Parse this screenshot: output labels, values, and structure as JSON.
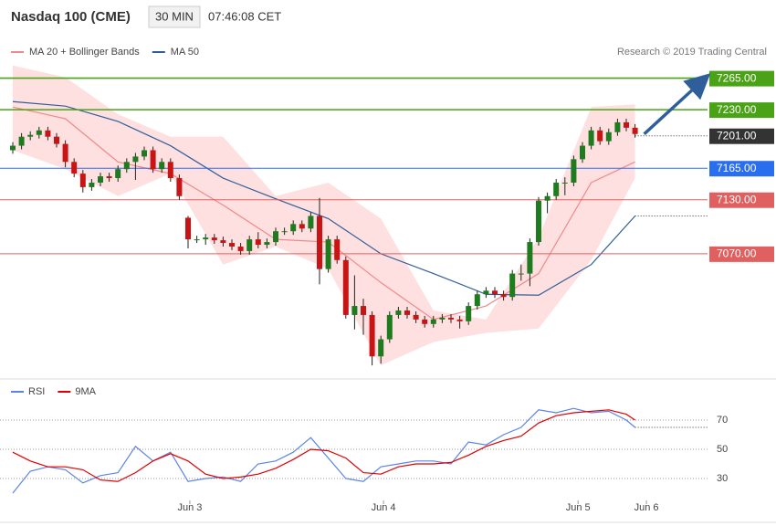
{
  "header": {
    "title": "Nasdaq 100 (CME)",
    "interval": "30 MIN",
    "time": "07:46:08 CET"
  },
  "chart_data": [
    {
      "type": "candlestick",
      "annotation": "Research © 2019 Trading Central",
      "up_color": "#1e7b1e",
      "down_color": "#c81414",
      "open": [
        7185,
        7190,
        7200,
        7202,
        7207,
        7200,
        7192,
        7172,
        7159,
        7144,
        7149,
        7156,
        7154,
        7164,
        7172,
        7178,
        7185,
        7164,
        7172,
        7154,
        7110,
        7086,
        7086,
        7088,
        7085,
        7082,
        7078,
        7073,
        7086,
        7080,
        7083,
        7095,
        7095,
        7103,
        7098,
        7112,
        7053,
        7086,
        7063,
        7002,
        7012,
        7002,
        6956,
        6975,
        7002,
        7007,
        7002,
        6997,
        6992,
        6997,
        6999,
        6997,
        6995,
        7012,
        7025,
        7029,
        7025,
        7022,
        7048,
        7048,
        7083,
        7129,
        7134,
        7149,
        7149,
        7175,
        7190,
        7207,
        7195,
        7205,
        7216,
        7210
      ],
      "high": [
        7194,
        7204,
        7206,
        7211,
        7211,
        7204,
        7196,
        7176,
        7163,
        7153,
        7160,
        7160,
        7168,
        7176,
        7182,
        7189,
        7189,
        7176,
        7176,
        7158,
        7112,
        7090,
        7092,
        7092,
        7089,
        7086,
        7082,
        7090,
        7094,
        7087,
        7099,
        7099,
        7107,
        7107,
        7116,
        7132,
        7090,
        7090,
        7067,
        7046,
        7020,
        7006,
        6979,
        7006,
        7011,
        7011,
        7006,
        7001,
        7001,
        7003,
        7003,
        7001,
        7016,
        7029,
        7033,
        7033,
        7029,
        7052,
        7058,
        7087,
        7133,
        7138,
        7153,
        7155,
        7179,
        7194,
        7211,
        7211,
        7209,
        7220,
        7220,
        7214
      ],
      "low": [
        7181,
        7186,
        7196,
        7198,
        7196,
        7188,
        7166,
        7155,
        7138,
        7140,
        7145,
        7150,
        7150,
        7160,
        7152,
        7174,
        7160,
        7160,
        7150,
        7130,
        7076,
        7082,
        7080,
        7081,
        7078,
        7074,
        7069,
        7069,
        7076,
        7076,
        7079,
        7091,
        7091,
        7094,
        7094,
        7036,
        7049,
        7059,
        6998,
        6986,
        6980,
        6946,
        6948,
        6971,
        6998,
        6998,
        6993,
        6988,
        6988,
        6993,
        6993,
        6987,
        6991,
        7008,
        7021,
        7021,
        7018,
        7018,
        7040,
        7034,
        7079,
        7115,
        7130,
        7135,
        7145,
        7171,
        7186,
        7191,
        7191,
        7201,
        7206,
        7199
      ],
      "close": [
        7190,
        7200,
        7202,
        7207,
        7200,
        7192,
        7172,
        7159,
        7144,
        7149,
        7156,
        7154,
        7164,
        7172,
        7178,
        7185,
        7164,
        7172,
        7154,
        7134,
        7086,
        7086,
        7088,
        7085,
        7082,
        7078,
        7073,
        7086,
        7080,
        7083,
        7095,
        7095,
        7103,
        7098,
        7112,
        7053,
        7086,
        7063,
        7002,
        7012,
        7002,
        6956,
        6975,
        7002,
        7007,
        7002,
        6997,
        6992,
        6997,
        6999,
        6997,
        6995,
        7012,
        7025,
        7029,
        7025,
        7022,
        7048,
        7048,
        7083,
        7129,
        7134,
        7149,
        7149,
        7175,
        7190,
        7207,
        7195,
        7205,
        7216,
        7210,
        7203
      ],
      "ylim": [
        6936,
        7293
      ],
      "xlim": [
        0,
        73
      ],
      "xticks": [
        {
          "value": 20.2,
          "label": "Jun 3"
        },
        {
          "value": 42.3,
          "label": "Jun 4"
        },
        {
          "value": 64.5,
          "label": "Jun 5"
        },
        {
          "value": 72.3,
          "label": "Jun 6"
        }
      ],
      "overlays": [
        {
          "name": "MA 20 + Bollinger Bands",
          "color": "#ef8a8a",
          "band_color": "#ffe0e0",
          "x": [
            0,
            6,
            12,
            18,
            24,
            30,
            36,
            42,
            48,
            54,
            60,
            66,
            71
          ],
          "values": [
            7233,
            7220,
            7172,
            7159,
            7124,
            7086,
            7083,
            7038,
            6997,
            7012,
            7048,
            7149,
            7172
          ],
          "upper": [
            7279,
            7266,
            7225,
            7200,
            7200,
            7134,
            7149,
            7109,
            7007,
            6997,
            7088,
            7233,
            7236
          ],
          "lower": [
            7185,
            7164,
            7134,
            7159,
            7058,
            7078,
            7053,
            6946,
            6972,
            6982,
            6987,
            7063,
            7154
          ]
        },
        {
          "name": "MA 50",
          "color": "#2f5f9a",
          "x": [
            0,
            6,
            12,
            18,
            24,
            30,
            36,
            42,
            48,
            54,
            60,
            66,
            71
          ],
          "values": [
            7239,
            7234,
            7217,
            7190,
            7154,
            7131,
            7109,
            7070,
            7048,
            7025,
            7024,
            7058,
            7112
          ]
        }
      ],
      "levels": [
        {
          "value": 7265,
          "label": "7265.00",
          "color": "#4aa317"
        },
        {
          "value": 7230,
          "label": "7230.00",
          "color": "#4aa317"
        },
        {
          "value": 7201,
          "label": "7201.00",
          "color": "#333333"
        },
        {
          "value": 7165,
          "label": "7165.00",
          "color": "#2a6ef0"
        },
        {
          "value": 7130,
          "label": "7130.00",
          "color": "#e06060"
        },
        {
          "value": 7070,
          "label": "7070.00",
          "color": "#e06060"
        }
      ]
    },
    {
      "type": "line",
      "x": [
        0,
        2,
        4,
        6,
        8,
        10,
        12,
        14,
        16,
        18,
        20,
        22,
        24,
        26,
        28,
        30,
        32,
        34,
        36,
        38,
        40,
        42,
        44,
        46,
        48,
        50,
        52,
        54,
        56,
        58,
        60,
        62,
        64,
        66,
        68,
        70,
        71
      ],
      "series": [
        {
          "name": "RSI",
          "color": "#5b84e6",
          "values": [
            20,
            35,
            38,
            36,
            27,
            32,
            34,
            52,
            42,
            48,
            28,
            30,
            31,
            28,
            40,
            42,
            48,
            58,
            44,
            30,
            28,
            38,
            40,
            42,
            42,
            40,
            55,
            53,
            60,
            65,
            77,
            75,
            78,
            75,
            76,
            70,
            65
          ]
        },
        {
          "name": "9MA",
          "color": "#e00000",
          "values": [
            48,
            42,
            38,
            38,
            36,
            29,
            28,
            34,
            42,
            47,
            42,
            33,
            30,
            31,
            33,
            37,
            43,
            50,
            49,
            44,
            34,
            33,
            38,
            40,
            40,
            41,
            46,
            52,
            56,
            59,
            68,
            73,
            75,
            76,
            77,
            74,
            70
          ]
        }
      ],
      "ylim": [
        15,
        82.5
      ],
      "yticks": [
        30,
        50,
        70
      ],
      "xlim": [
        0,
        73
      ]
    }
  ]
}
